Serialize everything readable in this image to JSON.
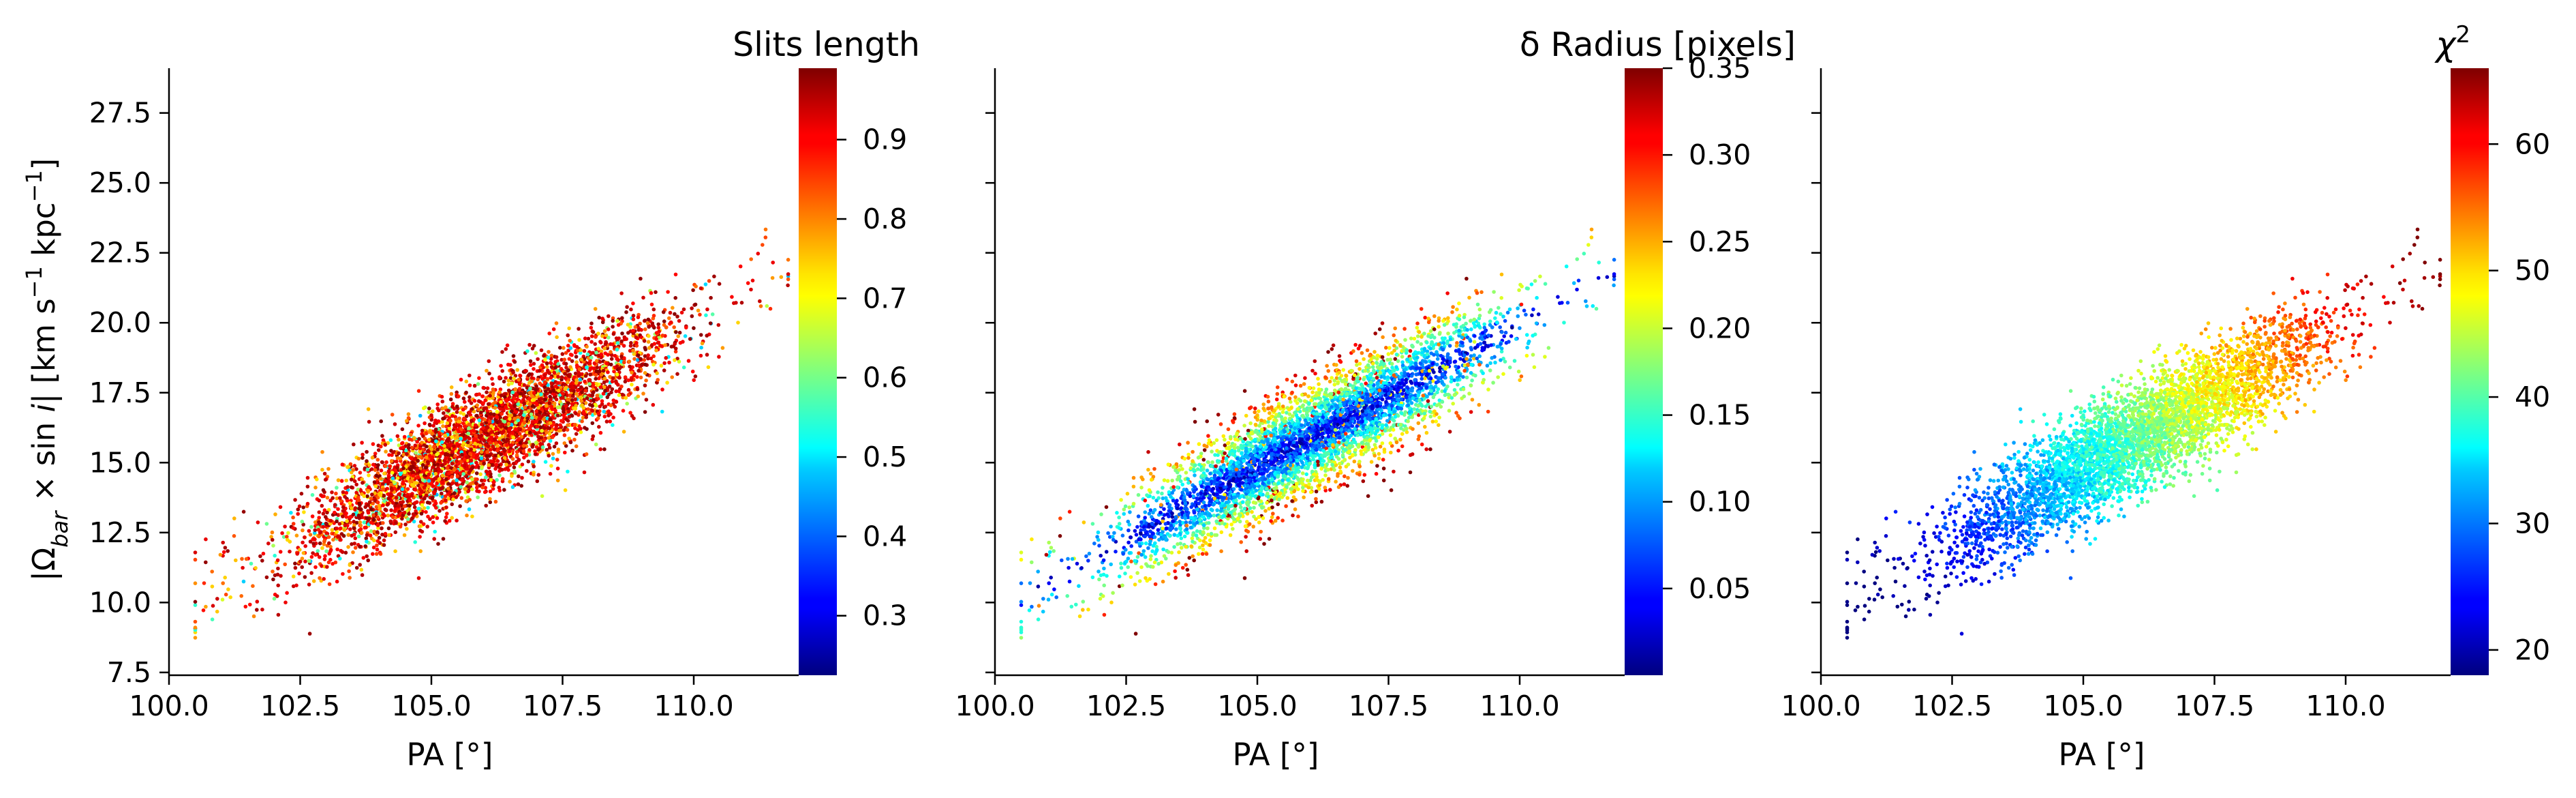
{
  "chart_data": [
    {
      "type": "scatter",
      "panel": 1,
      "xlabel": "PA [°]",
      "ylabel_parts": [
        "|Ω",
        "bar",
        " × sin ",
        "i",
        "|   [km s",
        "−1",
        " kpc",
        "−1",
        "]"
      ],
      "xlim": [
        100.0,
        112.0
      ],
      "ylim": [
        7.4,
        29.1
      ],
      "xticks": [
        100.0,
        102.5,
        105.0,
        107.5,
        110.0
      ],
      "xtick_labels": [
        "100.0",
        "102.5",
        "105.0",
        "107.5",
        "110.0"
      ],
      "yticks": [
        7.5,
        10.0,
        12.5,
        15.0,
        17.5,
        20.0,
        22.5,
        25.0,
        27.5
      ],
      "ytick_labels": [
        "7.5",
        "10.0",
        "12.5",
        "15.0",
        "17.5",
        "20.0",
        "22.5",
        "25.0",
        "27.5"
      ],
      "colormap": "jet",
      "colorbar": {
        "title": "Slits length",
        "range": [
          0.225,
          0.99
        ],
        "ticks": [
          0.3,
          0.4,
          0.5,
          0.6,
          0.7,
          0.8,
          0.9
        ],
        "tick_labels": [
          "0.3",
          "0.4",
          "0.5",
          "0.6",
          "0.7",
          "0.8",
          "0.9"
        ]
      },
      "point_cloud": {
        "n_points": 4500,
        "x_center": 106.0,
        "x_spread": 1.85,
        "x_min": 100.5,
        "x_max": 111.8,
        "slope": 1.03,
        "intercept_at_x0": 15.85,
        "y_spread": 0.95,
        "color_trend": "mostly high (red/orange); lower values scattered throughout"
      }
    },
    {
      "type": "scatter",
      "panel": 2,
      "xlabel": "PA [°]",
      "xlim": [
        100.0,
        112.0
      ],
      "ylim": [
        7.4,
        29.1
      ],
      "xticks": [
        100.0,
        102.5,
        105.0,
        107.5,
        110.0
      ],
      "xtick_labels": [
        "100.0",
        "102.5",
        "105.0",
        "107.5",
        "110.0"
      ],
      "colormap": "jet",
      "colorbar": {
        "title": "δ Radius [pixels]",
        "range": [
          0.0,
          0.35
        ],
        "ticks": [
          0.05,
          0.1,
          0.15,
          0.2,
          0.25,
          0.3,
          0.35
        ],
        "tick_labels": [
          "0.05",
          "0.10",
          "0.15",
          "0.20",
          "0.25",
          "0.30",
          "0.35"
        ]
      },
      "point_cloud": {
        "n_points": 4500,
        "x_center": 106.0,
        "x_spread": 1.85,
        "x_min": 100.5,
        "x_max": 111.8,
        "slope": 1.03,
        "intercept_at_x0": 15.85,
        "y_spread": 0.95,
        "color_trend": "low values (blue) along the ridge, higher values (green/yellow/red) at the edges"
      }
    },
    {
      "type": "scatter",
      "panel": 3,
      "xlabel": "PA [°]",
      "xlim": [
        100.0,
        112.0
      ],
      "ylim": [
        7.4,
        29.1
      ],
      "xticks": [
        100.0,
        102.5,
        105.0,
        107.5,
        110.0
      ],
      "xtick_labels": [
        "100.0",
        "102.5",
        "105.0",
        "107.5",
        "110.0"
      ],
      "colormap": "jet",
      "colorbar": {
        "title_parts": [
          "χ",
          "2"
        ],
        "range": [
          18.0,
          66.0
        ],
        "ticks": [
          20,
          30,
          40,
          50,
          60
        ],
        "tick_labels": [
          "20",
          "30",
          "40",
          "50",
          "60"
        ]
      },
      "point_cloud": {
        "n_points": 4500,
        "x_center": 106.0,
        "x_spread": 1.85,
        "x_min": 100.5,
        "x_max": 111.8,
        "slope": 1.03,
        "intercept_at_x0": 15.85,
        "y_spread": 0.95,
        "color_trend": "increases with PA: ~20 at PA 101 to ~60 at PA 111"
      }
    }
  ]
}
